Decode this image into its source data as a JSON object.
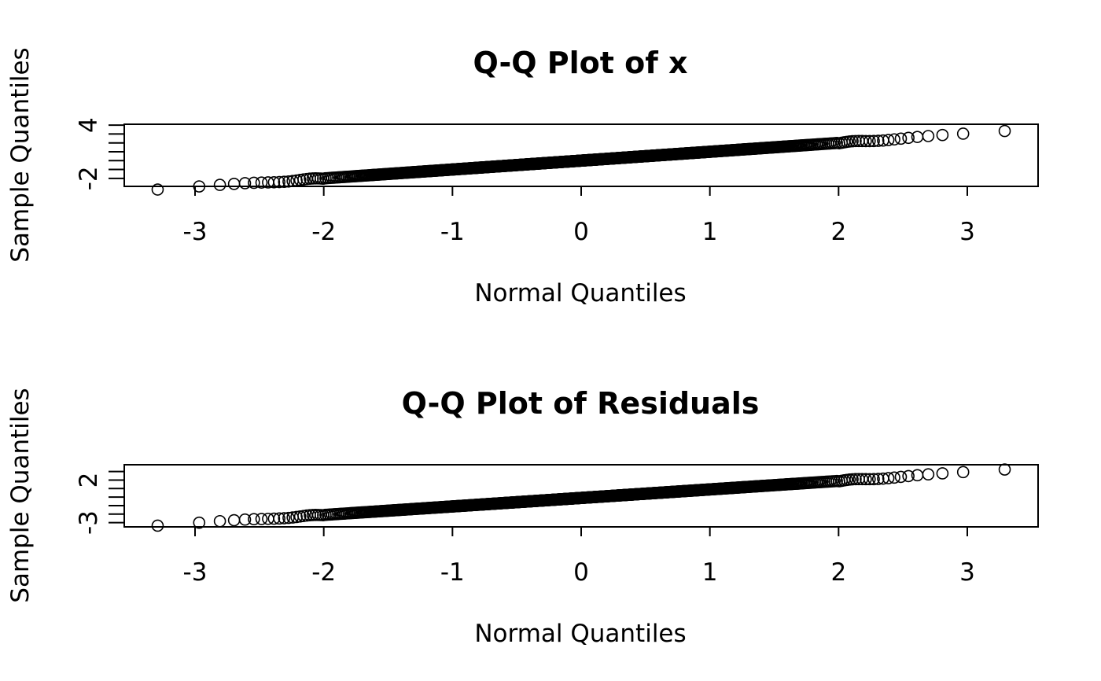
{
  "chart_data": [
    {
      "type": "scatter",
      "title": "Q-Q Plot of x",
      "xlabel": "Normal Quantiles",
      "ylabel": "Sample Quantiles",
      "xlim": [
        -3.55,
        3.55
      ],
      "ylim": [
        -2.9,
        4.1
      ],
      "xticks": [
        -3,
        -2,
        -1,
        0,
        1,
        2,
        3
      ],
      "yticks": [
        -2,
        -1,
        0,
        1,
        2,
        3,
        4
      ],
      "ytick_labels": [
        "-2",
        "",
        "",
        "",
        "",
        "",
        "4"
      ],
      "series": [
        {
          "n": 1000,
          "intercept": 0.0,
          "slope": 1.0
        }
      ],
      "points_text": "Points follow approximately straight line; extreme points at x=-3.29 (y≈-2.8) and x=3.29 (y≈3.9)"
    },
    {
      "type": "scatter",
      "title": "Q-Q Plot of Residuals",
      "xlabel": "Normal Quantiles",
      "ylabel": "Sample Quantiles",
      "xlim": [
        -3.55,
        3.55
      ],
      "ylim": [
        -3.5,
        3.8
      ],
      "xticks": [
        -3,
        -2,
        -1,
        0,
        1,
        2,
        3
      ],
      "yticks": [
        -3,
        -2,
        -1,
        0,
        1,
        2,
        3
      ],
      "ytick_labels": [
        "-3",
        "",
        "",
        "",
        "",
        "2",
        ""
      ],
      "series": [
        {
          "n": 1000,
          "intercept": -0.1,
          "slope": 1.0
        }
      ]
    }
  ]
}
